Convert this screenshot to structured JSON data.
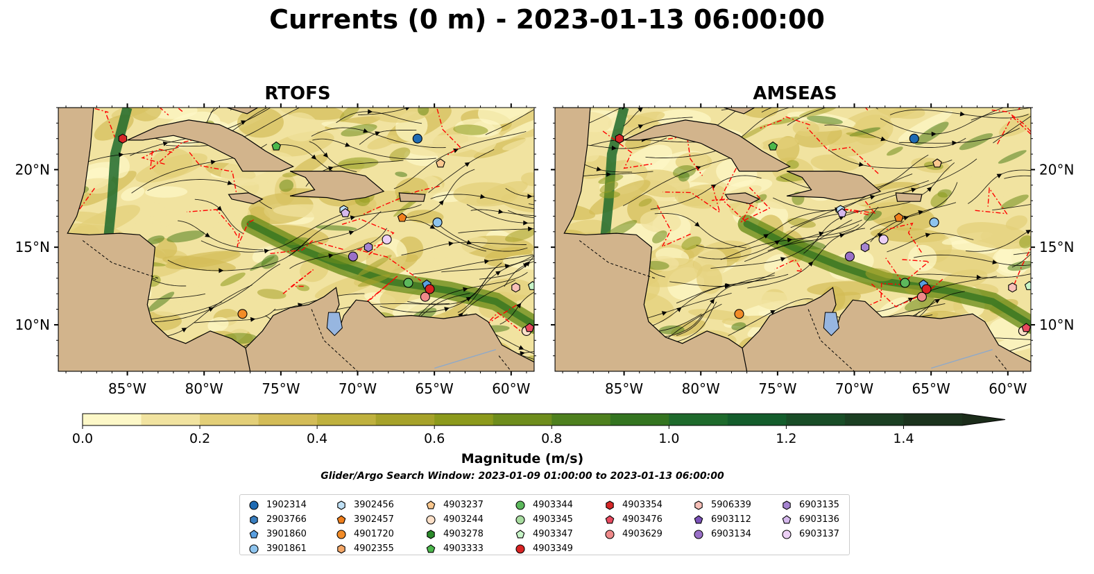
{
  "title": "Currents (0 m) - 2023-01-13 06:00:00",
  "panels": [
    {
      "title": "RTOFS"
    },
    {
      "title": "AMSEAS"
    }
  ],
  "colorbar": {
    "label": "Magnitude (m/s)",
    "subtitle": "Glider/Argo Search Window: 2023-01-09 01:00:00 to 2023-01-13 06:00:00",
    "ticks": [
      "0.0",
      "0.2",
      "0.4",
      "0.6",
      "0.8",
      "1.0",
      "1.2",
      "1.4"
    ],
    "colors": [
      "#fdf8c8",
      "#f1e3a0",
      "#e3cf78",
      "#d3bc57",
      "#bfb13e",
      "#a6a22a",
      "#8c9a1c",
      "#6e8d1c",
      "#4e801e",
      "#347420",
      "#1e6a2c",
      "#145d2c",
      "#194d27",
      "#1b3f22",
      "#1b331d",
      "#1b2c1a"
    ]
  },
  "chart_data": {
    "type": "map",
    "title": "Currents (0 m) - 2023-01-13 06:00:00",
    "panels": [
      "RTOFS",
      "AMSEAS"
    ],
    "x_ticks": [
      "85°W",
      "80°W",
      "75°W",
      "70°W",
      "65°W",
      "60°W"
    ],
    "y_ticks": [
      "10°N",
      "15°N",
      "20°N"
    ],
    "lon_range": [
      -89.5,
      -58.5
    ],
    "lat_range": [
      7,
      24
    ],
    "colorbar_range": [
      0,
      1.5
    ],
    "colorbar_ticks": [
      0.0,
      0.2,
      0.4,
      0.6,
      0.8,
      1.0,
      1.2,
      1.4
    ],
    "floats": [
      {
        "id": "1902314",
        "color": "#1f6bb3",
        "marker": "circle",
        "rtofs": [
          -66.1,
          22.0
        ],
        "amseas": [
          -66.1,
          22.0
        ]
      },
      {
        "id": "3902456",
        "color": "#bfe0f5",
        "marker": "hexagon",
        "rtofs": [
          -70.9,
          17.4
        ],
        "amseas": [
          -70.9,
          17.4
        ]
      },
      {
        "id": "4903237",
        "color": "#fbc88f",
        "marker": "pentagon",
        "rtofs": [
          -64.6,
          20.4
        ],
        "amseas": [
          -64.6,
          20.4
        ]
      },
      {
        "id": "4903344",
        "color": "#5cb85c",
        "marker": "circle",
        "rtofs": [
          -66.7,
          12.7
        ],
        "amseas": [
          -66.7,
          12.7
        ]
      },
      {
        "id": "4903354",
        "color": "#d62728",
        "marker": "hexagon",
        "rtofs": [
          -85.3,
          22.0
        ],
        "amseas": [
          -85.3,
          22.0
        ]
      },
      {
        "id": "5906339",
        "color": "#f8c0b8",
        "marker": "hexagon",
        "rtofs": [
          -59.7,
          12.4
        ],
        "amseas": [
          -59.7,
          12.4
        ]
      },
      {
        "id": "6903135",
        "color": "#a584d0",
        "marker": "hexagon",
        "rtofs": [
          -69.3,
          15.0
        ],
        "amseas": [
          -69.3,
          15.0
        ]
      },
      {
        "id": "2903766",
        "color": "#3a7fc0",
        "marker": "hexagon",
        "rtofs": [],
        "amseas": []
      },
      {
        "id": "3902457",
        "color": "#f07f1c",
        "marker": "pentagon",
        "rtofs": [
          -67.1,
          16.9
        ],
        "amseas": [
          -67.1,
          16.9
        ]
      },
      {
        "id": "4903244",
        "color": "#fde0c8",
        "marker": "circle",
        "rtofs": [
          -59.0,
          9.6
        ],
        "amseas": [
          -59.0,
          9.6
        ]
      },
      {
        "id": "4903345",
        "color": "#a8dca0",
        "marker": "circle",
        "rtofs": [],
        "amseas": []
      },
      {
        "id": "4903476",
        "color": "#e84a5f",
        "marker": "pentagon",
        "rtofs": [
          -58.8,
          9.8
        ],
        "amseas": [
          -58.8,
          9.8
        ]
      },
      {
        "id": "6903112",
        "color": "#7b52b8",
        "marker": "pentagon",
        "rtofs": [],
        "amseas": []
      },
      {
        "id": "6903136",
        "color": "#d5b8ec",
        "marker": "pentagon",
        "rtofs": [
          -70.8,
          17.2
        ],
        "amseas": [
          -70.8,
          17.2
        ]
      },
      {
        "id": "3901860",
        "color": "#5a9fe0",
        "marker": "pentagon",
        "rtofs": [
          -65.5,
          12.6
        ],
        "amseas": [
          -65.5,
          12.6
        ]
      },
      {
        "id": "4901720",
        "color": "#f28c28",
        "marker": "circle",
        "rtofs": [
          -77.5,
          10.7
        ],
        "amseas": [
          -77.5,
          10.7
        ]
      },
      {
        "id": "4903278",
        "color": "#2a8a2a",
        "marker": "hexagon",
        "rtofs": [],
        "amseas": []
      },
      {
        "id": "4903347",
        "color": "#c8f5c8",
        "marker": "pentagon",
        "rtofs": [
          -58.6,
          12.5
        ],
        "amseas": [
          -58.6,
          12.5
        ]
      },
      {
        "id": "4903629",
        "color": "#ef8a8a",
        "marker": "circle",
        "rtofs": [
          -65.6,
          11.8
        ],
        "amseas": [
          -65.6,
          11.8
        ]
      },
      {
        "id": "6903134",
        "color": "#9a70c8",
        "marker": "circle",
        "rtofs": [
          -70.3,
          14.4
        ],
        "amseas": [
          -70.3,
          14.4
        ]
      },
      {
        "id": "6903137",
        "color": "#ecd0f5",
        "marker": "circle",
        "rtofs": [
          -68.1,
          15.5
        ],
        "amseas": [
          -68.1,
          15.5
        ]
      },
      {
        "id": "3901861",
        "color": "#8ec4ee",
        "marker": "circle",
        "rtofs": [
          -64.8,
          16.6
        ],
        "amseas": [
          -64.8,
          16.6
        ]
      },
      {
        "id": "4902355",
        "color": "#f5a868",
        "marker": "hexagon",
        "rtofs": [],
        "amseas": []
      },
      {
        "id": "4903333",
        "color": "#4cb84c",
        "marker": "pentagon",
        "rtofs": [
          -75.3,
          21.5
        ],
        "amseas": [
          -75.3,
          21.5
        ]
      },
      {
        "id": "4903349",
        "color": "#d92323",
        "marker": "circle",
        "rtofs": [
          -65.3,
          12.3
        ],
        "amseas": [
          -65.3,
          12.3
        ]
      }
    ]
  },
  "legend": {
    "columns": [
      [
        {
          "id": "1902314",
          "color": "#1f6bb3",
          "marker": "circle"
        },
        {
          "id": "2903766",
          "color": "#3a7fc0",
          "marker": "hexagon"
        },
        {
          "id": "3901860",
          "color": "#5a9fe0",
          "marker": "pentagon"
        },
        {
          "id": "3901861",
          "color": "#8ec4ee",
          "marker": "circle"
        }
      ],
      [
        {
          "id": "3902456",
          "color": "#bfe0f5",
          "marker": "hexagon"
        },
        {
          "id": "3902457",
          "color": "#f07f1c",
          "marker": "pentagon"
        },
        {
          "id": "4901720",
          "color": "#f28c28",
          "marker": "circle"
        },
        {
          "id": "4902355",
          "color": "#f5a868",
          "marker": "hexagon"
        }
      ],
      [
        {
          "id": "4903237",
          "color": "#fbc88f",
          "marker": "pentagon"
        },
        {
          "id": "4903244",
          "color": "#fde0c8",
          "marker": "circle"
        },
        {
          "id": "4903278",
          "color": "#2a8a2a",
          "marker": "hexagon"
        },
        {
          "id": "4903333",
          "color": "#4cb84c",
          "marker": "pentagon"
        }
      ],
      [
        {
          "id": "4903344",
          "color": "#5cb85c",
          "marker": "circle"
        },
        {
          "id": "4903345",
          "color": "#a8dca0",
          "marker": "circle"
        },
        {
          "id": "4903347",
          "color": "#c8f5c8",
          "marker": "pentagon"
        },
        {
          "id": "4903349",
          "color": "#d92323",
          "marker": "circle"
        }
      ],
      [
        {
          "id": "4903354",
          "color": "#d62728",
          "marker": "hexagon"
        },
        {
          "id": "4903476",
          "color": "#e84a5f",
          "marker": "pentagon"
        },
        {
          "id": "4903629",
          "color": "#ef8a8a",
          "marker": "circle"
        }
      ],
      [
        {
          "id": "5906339",
          "color": "#f8c0b8",
          "marker": "hexagon"
        },
        {
          "id": "6903112",
          "color": "#7b52b8",
          "marker": "pentagon"
        },
        {
          "id": "6903134",
          "color": "#9a70c8",
          "marker": "circle"
        }
      ],
      [
        {
          "id": "6903135",
          "color": "#a584d0",
          "marker": "hexagon"
        },
        {
          "id": "6903136",
          "color": "#d5b8ec",
          "marker": "pentagon"
        },
        {
          "id": "6903137",
          "color": "#ecd0f5",
          "marker": "circle"
        }
      ]
    ]
  },
  "colors": {
    "land": "#d2b48c",
    "ocean_low": "#fdf8c8",
    "pacific": "#97b6e0",
    "eez_line": "#ff0000",
    "streamline": "#000000"
  }
}
